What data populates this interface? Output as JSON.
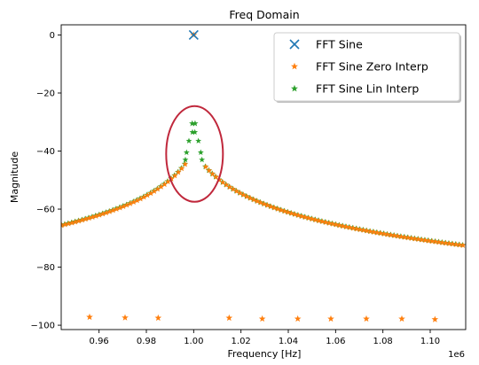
{
  "chart_data": {
    "type": "scatter",
    "title": "Freq Domain",
    "xlabel": "Frequency [Hz]",
    "ylabel": "Magnitude",
    "x_offset_label": "1e6",
    "xlim": [
      0.944,
      1.115
    ],
    "ylim": [
      -101.5,
      3.5
    ],
    "xticks": [
      0.96,
      0.98,
      1.0,
      1.02,
      1.04,
      1.06,
      1.08,
      1.1
    ],
    "xtick_labels": [
      "0.96",
      "0.98",
      "1.00",
      "1.02",
      "1.04",
      "1.06",
      "1.08",
      "1.10"
    ],
    "yticks": [
      0,
      -20,
      -40,
      -60,
      -80,
      -100
    ],
    "ytick_labels": [
      "0",
      "−20",
      "−40",
      "−60",
      "−80",
      "−100"
    ],
    "grid": false,
    "legend_placement": "top-right",
    "series": [
      {
        "name": "FFT Sine",
        "marker": "x",
        "color": "#1f77b4",
        "x": [
          1.0
        ],
        "y": [
          0
        ]
      },
      {
        "name": "FFT Sine Zero Interp",
        "marker": "star",
        "color": "#ff7f0e",
        "x": [
          0.956,
          0.971,
          0.985,
          1.0,
          1.015,
          1.029,
          1.044,
          1.058,
          1.073,
          1.088,
          1.102
        ],
        "y": [
          -97.2,
          -97.4,
          -97.5,
          0,
          -97.5,
          -97.8,
          -97.8,
          -97.8,
          -97.8,
          -97.8,
          -98.0
        ]
      },
      {
        "name": "FFT Sine Lin Interp",
        "marker": "star",
        "color": "#2ca02c",
        "peak": {
          "x": 1.0,
          "y": -30.5
        },
        "shoulder_points": [
          [
            0.998,
            -36.5
          ],
          [
            1.002,
            -36.5
          ],
          [
            0.9995,
            -33.5
          ],
          [
            1.0005,
            -33.5
          ]
        ],
        "curve_profile": {
          "description": "decay from peak toward both edges",
          "x_range": [
            0.944,
            1.115
          ],
          "y_at_left_edge": -65.5,
          "y_at_right_edge": -72.5
        }
      }
    ],
    "annotations": [
      {
        "shape": "ellipse",
        "color": "#c0283c",
        "center_x": 1.0,
        "center_y": -41,
        "note": "circled peak region"
      }
    ]
  }
}
